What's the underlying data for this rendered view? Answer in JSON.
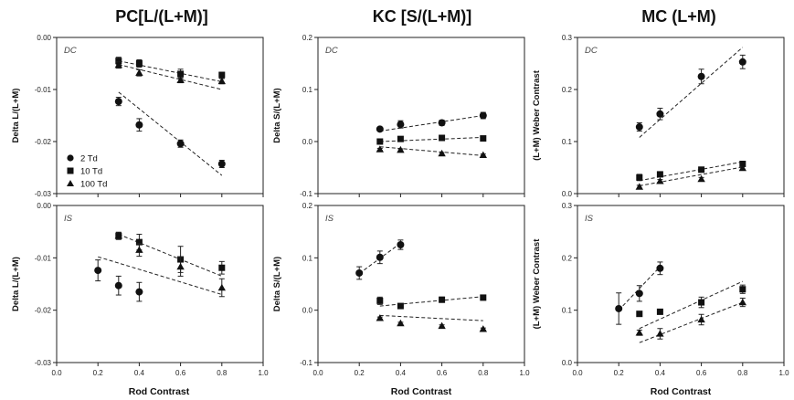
{
  "chart_data": {
    "type": "scatter",
    "column_titles": [
      "PC[L/(L+M)]",
      "KC  [S/(L+M)]",
      "MC  (L+M)"
    ],
    "xlabel": "Rod Contrast",
    "xlim": [
      0.0,
      1.0
    ],
    "xticks": [
      "0.0",
      "0.2",
      "0.4",
      "0.6",
      "0.8",
      "1.0"
    ],
    "legend": {
      "placement": "inside lower-left of top-left panel",
      "entries": [
        {
          "label": "2 Td",
          "marker": "circle"
        },
        {
          "label": "10 Td",
          "marker": "square"
        },
        {
          "label": "100 Td",
          "marker": "triangle"
        }
      ]
    },
    "panels": [
      {
        "id": "pc-dc",
        "row": 0,
        "col": 0,
        "tag": "DC",
        "ylabel": "Delta L/(L+M)",
        "ylim": [
          -0.03,
          0.0
        ],
        "yticks": [
          "0.00",
          "-0.01",
          "-0.02",
          "-0.03"
        ],
        "series": [
          {
            "marker": "circle",
            "x": [
              0.3,
              0.4,
              0.6,
              0.8
            ],
            "y": [
              -0.0123,
              -0.0168,
              -0.0204,
              -0.0243
            ],
            "err": [
              0.0008,
              0.0012,
              0.0007,
              0.0007
            ],
            "fit": [
              [
                0.3,
                -0.0105
              ],
              [
                0.8,
                -0.0265
              ]
            ]
          },
          {
            "marker": "square",
            "x": [
              0.3,
              0.4,
              0.6,
              0.8
            ],
            "y": [
              -0.0045,
              -0.005,
              -0.007,
              -0.0072
            ],
            "err": [
              0.0007,
              0.0007,
              0.0009,
              0.0005
            ],
            "fit": [
              [
                0.3,
                -0.0045
              ],
              [
                0.8,
                -0.0085
              ]
            ]
          },
          {
            "marker": "triangle",
            "x": [
              0.3,
              0.4,
              0.6,
              0.8
            ],
            "y": [
              -0.0053,
              -0.0068,
              -0.0082,
              -0.0084
            ],
            "err": [
              0.0006,
              0.0006,
              0.0005,
              0.0005
            ],
            "fit": [
              [
                0.3,
                -0.0052
              ],
              [
                0.8,
                -0.01
              ]
            ]
          }
        ]
      },
      {
        "id": "kc-dc",
        "row": 0,
        "col": 1,
        "tag": "DC",
        "ylabel": "Delta S/(L+M)",
        "ylim": [
          -0.1,
          0.2
        ],
        "yticks": [
          "0.2",
          "0.1",
          "0.0",
          "-0.1"
        ],
        "series": [
          {
            "marker": "circle",
            "x": [
              0.3,
              0.4,
              0.6,
              0.8
            ],
            "y": [
              0.024,
              0.033,
              0.036,
              0.05
            ],
            "err": [
              0.003,
              0.007,
              0.005,
              0.006
            ],
            "fit": [
              [
                0.3,
                0.02
              ],
              [
                0.8,
                0.05
              ]
            ]
          },
          {
            "marker": "square",
            "x": [
              0.3,
              0.4,
              0.6,
              0.8
            ],
            "y": [
              0.0,
              0.005,
              0.007,
              0.006
            ],
            "err": [
              0.002,
              0.002,
              0.002,
              0.002
            ],
            "fit": [
              [
                0.3,
                0.0
              ],
              [
                0.8,
                0.008
              ]
            ]
          },
          {
            "marker": "triangle",
            "x": [
              0.3,
              0.4,
              0.6,
              0.8
            ],
            "y": [
              -0.015,
              -0.016,
              -0.023,
              -0.026
            ],
            "err": [
              0.002,
              0.002,
              0.002,
              0.002
            ],
            "fit": [
              [
                0.3,
                -0.01
              ],
              [
                0.8,
                -0.027
              ]
            ]
          }
        ]
      },
      {
        "id": "mc-dc",
        "row": 0,
        "col": 2,
        "tag": "DC",
        "ylabel": "(L+M) Weber Contrast",
        "ylim": [
          0.0,
          0.3
        ],
        "yticks": [
          "0.3",
          "0.2",
          "0.1",
          "0.0"
        ],
        "series": [
          {
            "marker": "circle",
            "x": [
              0.3,
              0.4,
              0.6,
              0.8
            ],
            "y": [
              0.128,
              0.153,
              0.225,
              0.253
            ],
            "err": [
              0.008,
              0.011,
              0.014,
              0.013
            ],
            "fit": [
              [
                0.3,
                0.108
              ],
              [
                0.8,
                0.281
              ]
            ]
          },
          {
            "marker": "square",
            "x": [
              0.3,
              0.4,
              0.6,
              0.8
            ],
            "y": [
              0.031,
              0.037,
              0.046,
              0.057
            ],
            "err": [
              0.006,
              0.004,
              0.004,
              0.004
            ],
            "fit": [
              [
                0.3,
                0.025
              ],
              [
                0.8,
                0.061
              ]
            ]
          },
          {
            "marker": "triangle",
            "x": [
              0.3,
              0.4,
              0.6,
              0.8
            ],
            "y": [
              0.013,
              0.024,
              0.028,
              0.049
            ],
            "err": [
              0.003,
              0.003,
              0.003,
              0.003
            ],
            "fit": [
              [
                0.3,
                0.015
              ],
              [
                0.8,
                0.051
              ]
            ]
          }
        ]
      },
      {
        "id": "pc-is",
        "row": 1,
        "col": 0,
        "tag": "IS",
        "ylabel": "Delta L/(L+M)",
        "ylim": [
          -0.03,
          0.0
        ],
        "yticks": [
          "0.00",
          "-0.01",
          "-0.02",
          "-0.03"
        ],
        "series": [
          {
            "marker": "circle",
            "x": [
              0.2,
              0.3,
              0.4
            ],
            "y": [
              -0.0124,
              -0.0153,
              -0.0165
            ],
            "err": [
              0.002,
              0.0018,
              0.0018
            ],
            "fit": null
          },
          {
            "marker": "square",
            "x": [
              0.3,
              0.4,
              0.6,
              0.8
            ],
            "y": [
              -0.0058,
              -0.007,
              -0.0103,
              -0.0119
            ],
            "err": [
              0.0007,
              0.0015,
              0.0025,
              0.0012
            ],
            "fit": [
              [
                0.3,
                -0.0055
              ],
              [
                0.8,
                -0.0135
              ]
            ]
          },
          {
            "marker": "triangle",
            "x": [
              0.3,
              0.4,
              0.6,
              0.8
            ],
            "y": [
              -0.0058,
              -0.0085,
              -0.0117,
              -0.0157
            ],
            "err": [
              0.0006,
              0.0012,
              0.0018,
              0.0017
            ],
            "fit": [
              [
                0.2,
                -0.0098
              ],
              [
                0.8,
                -0.017
              ]
            ]
          }
        ]
      },
      {
        "id": "kc-is",
        "row": 1,
        "col": 1,
        "tag": "IS",
        "ylabel": "Delta S/(L+M)",
        "ylim": [
          -0.1,
          0.2
        ],
        "yticks": [
          "0.2",
          "0.1",
          "0.0",
          "-0.1"
        ],
        "series": [
          {
            "marker": "circle",
            "x": [
              0.2,
              0.3,
              0.4
            ],
            "y": [
              0.071,
              0.101,
              0.125
            ],
            "err": [
              0.012,
              0.012,
              0.009
            ],
            "fit": [
              [
                0.2,
                0.07
              ],
              [
                0.4,
                0.128
              ]
            ]
          },
          {
            "marker": "square",
            "x": [
              0.3,
              0.4,
              0.6,
              0.8
            ],
            "y": [
              0.018,
              0.008,
              0.02,
              0.024
            ],
            "err": [
              0.007,
              0.004,
              0.005,
              0.003
            ],
            "fit": [
              [
                0.3,
                0.008
              ],
              [
                0.8,
                0.026
              ]
            ]
          },
          {
            "marker": "triangle",
            "x": [
              0.3,
              0.4,
              0.6,
              0.8
            ],
            "y": [
              -0.015,
              -0.025,
              -0.03,
              -0.036
            ],
            "err": [
              0.002,
              0.002,
              0.002,
              0.002
            ],
            "fit": [
              [
                0.3,
                -0.01
              ],
              [
                0.8,
                -0.02
              ]
            ]
          }
        ]
      },
      {
        "id": "mc-is",
        "row": 1,
        "col": 2,
        "tag": "IS",
        "ylabel": "(L+M) Weber Contrast",
        "ylim": [
          0.0,
          0.3
        ],
        "yticks": [
          "0.3",
          "0.2",
          "0.1",
          "0.0"
        ],
        "series": [
          {
            "marker": "circle",
            "x": [
              0.2,
              0.3,
              0.4
            ],
            "y": [
              0.103,
              0.132,
              0.18
            ],
            "err": [
              0.03,
              0.015,
              0.012
            ],
            "fit": [
              [
                0.2,
                0.1
              ],
              [
                0.4,
                0.183
              ]
            ]
          },
          {
            "marker": "square",
            "x": [
              0.3,
              0.4,
              0.6,
              0.8
            ],
            "y": [
              0.093,
              0.097,
              0.115,
              0.14
            ],
            "err": [
              0.004,
              0.004,
              0.01,
              0.008
            ],
            "fit": [
              [
                0.3,
                0.065
              ],
              [
                0.8,
                0.155
              ]
            ]
          },
          {
            "marker": "triangle",
            "x": [
              0.3,
              0.4,
              0.6,
              0.8
            ],
            "y": [
              0.057,
              0.055,
              0.082,
              0.115
            ],
            "err": [
              0.005,
              0.01,
              0.01,
              0.008
            ],
            "fit": [
              [
                0.3,
                0.038
              ],
              [
                0.8,
                0.115
              ]
            ]
          }
        ]
      }
    ]
  }
}
